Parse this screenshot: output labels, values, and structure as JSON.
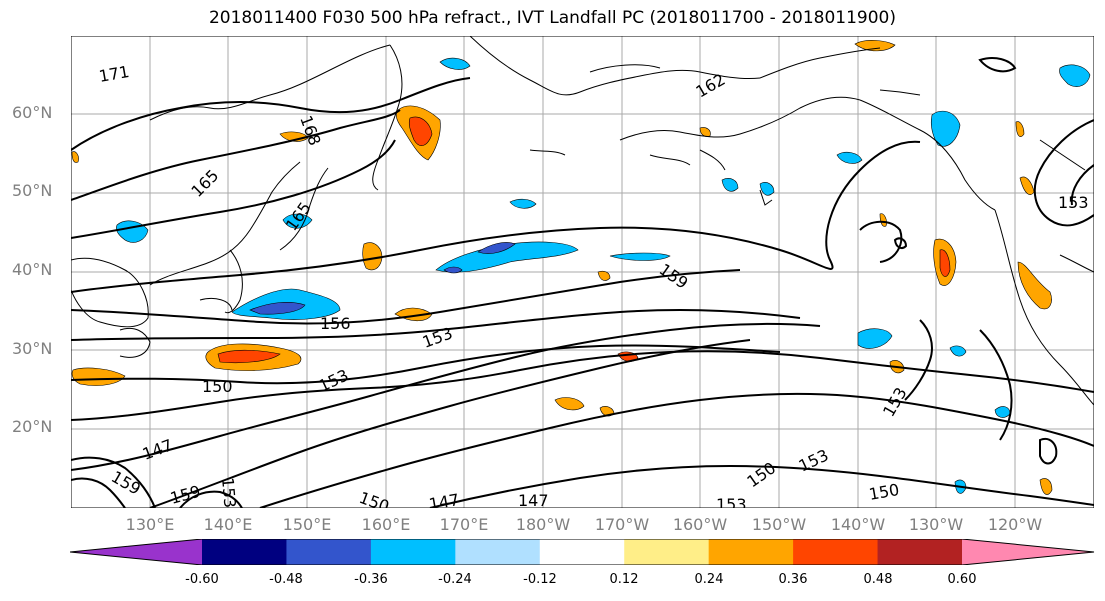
{
  "title": "2018011400 F030 500 hPa refract., IVT Landfall PC (2018011700 - 2018011900)",
  "lat_labels": [
    "60°N",
    "50°N",
    "40°N",
    "30°N",
    "20°N"
  ],
  "lon_labels": [
    "130°E",
    "140°E",
    "150°E",
    "160°E",
    "170°E",
    "180°W",
    "170°W",
    "160°W",
    "150°W",
    "140°W",
    "130°W",
    "120°W"
  ],
  "colorbar": {
    "colors": [
      "#9933cc",
      "#000080",
      "#3355cc",
      "#00bfff",
      "#b0e0ff",
      "#ffffff",
      "#ffee88",
      "#ffa500",
      "#ff4500",
      "#b22222",
      "#ff88b0"
    ],
    "tick_labels": [
      "-0.60",
      "-0.48",
      "-0.36",
      "-0.24",
      "-0.12",
      "0.12",
      "0.24",
      "0.36",
      "0.48",
      "0.60"
    ]
  },
  "contour_labels": [
    "171",
    "168",
    "162",
    "165",
    "165",
    "159",
    "156",
    "153",
    "150",
    "153",
    "153",
    "147",
    "159",
    "159",
    "153",
    "150",
    "147",
    "147",
    "153",
    "150",
    "153",
    "150",
    "153"
  ]
}
